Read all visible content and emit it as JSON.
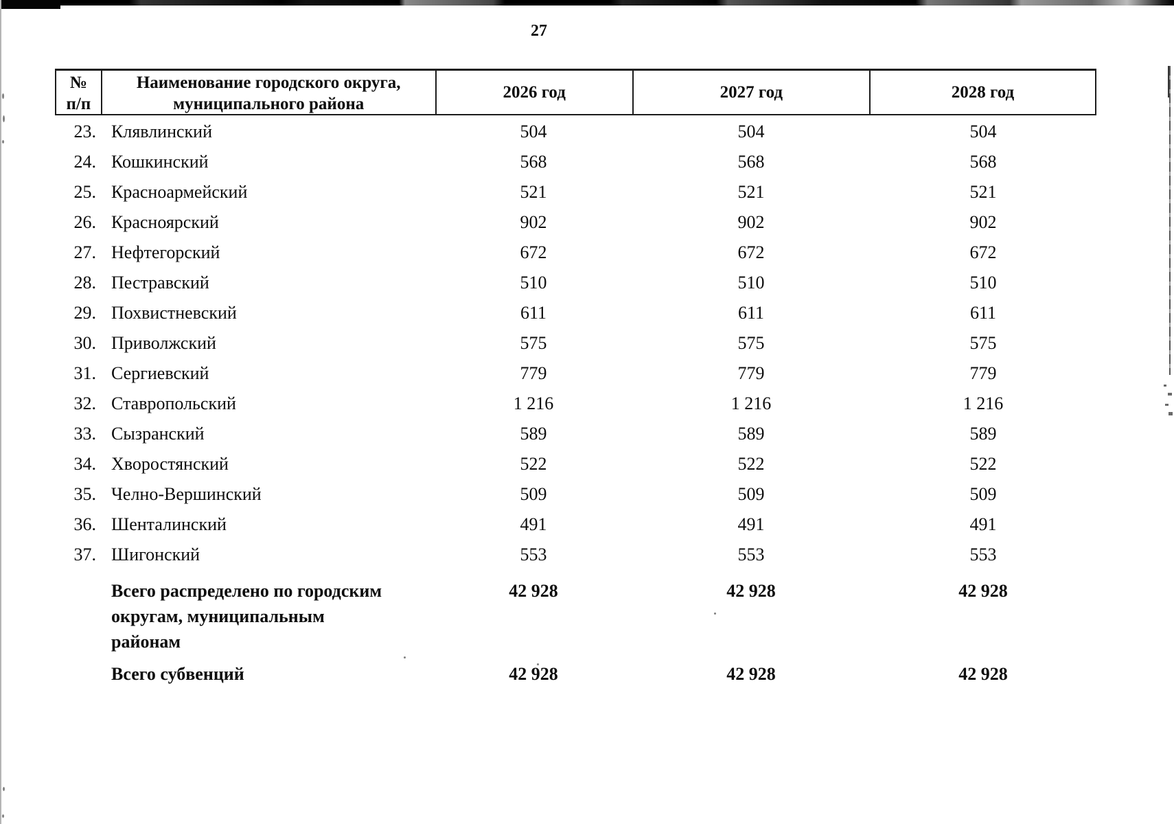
{
  "page": {
    "number": "27"
  },
  "table": {
    "headers": {
      "num_lines": [
        "№",
        "п/п"
      ],
      "name_lines": [
        "Наименование городского округа,",
        "муниципального района"
      ],
      "years": [
        "2026 год",
        "2027 год",
        "2028 год"
      ]
    },
    "rows": [
      {
        "num": "23.",
        "name": "Клявлинский",
        "values": [
          "504",
          "504",
          "504"
        ]
      },
      {
        "num": "24.",
        "name": "Кошкинский",
        "values": [
          "568",
          "568",
          "568"
        ]
      },
      {
        "num": "25.",
        "name": "Красноармейский",
        "values": [
          "521",
          "521",
          "521"
        ]
      },
      {
        "num": "26.",
        "name": "Красноярский",
        "values": [
          "902",
          "902",
          "902"
        ]
      },
      {
        "num": "27.",
        "name": "Нефтегорский",
        "values": [
          "672",
          "672",
          "672"
        ]
      },
      {
        "num": "28.",
        "name": "Пестравский",
        "values": [
          "510",
          "510",
          "510"
        ]
      },
      {
        "num": "29.",
        "name": "Похвистневский",
        "values": [
          "611",
          "611",
          "611"
        ]
      },
      {
        "num": "30.",
        "name": "Приволжский",
        "values": [
          "575",
          "575",
          "575"
        ]
      },
      {
        "num": "31.",
        "name": "Сергиевский",
        "values": [
          "779",
          "779",
          "779"
        ]
      },
      {
        "num": "32.",
        "name": "Ставропольский",
        "values": [
          "1 216",
          "1 216",
          "1 216"
        ]
      },
      {
        "num": "33.",
        "name": "Сызранский",
        "values": [
          "589",
          "589",
          "589"
        ]
      },
      {
        "num": "34.",
        "name": "Хворостянский",
        "values": [
          "522",
          "522",
          "522"
        ]
      },
      {
        "num": "35.",
        "name": "Челно-Вершинский",
        "values": [
          "509",
          "509",
          "509"
        ]
      },
      {
        "num": "36.",
        "name": "Шенталинский",
        "values": [
          "491",
          "491",
          "491"
        ]
      },
      {
        "num": "37.",
        "name": "Шигонский",
        "values": [
          "553",
          "553",
          "553"
        ]
      }
    ],
    "total_distributed": {
      "label_lines": [
        "Всего распределено по городским",
        "округам, муниципальным",
        "районам"
      ],
      "values": [
        "42 928",
        "42 928",
        "42 928"
      ]
    },
    "total_subventions": {
      "label": "Всего субвенций",
      "values": [
        "42 928",
        "42 928",
        "42 928"
      ]
    }
  }
}
